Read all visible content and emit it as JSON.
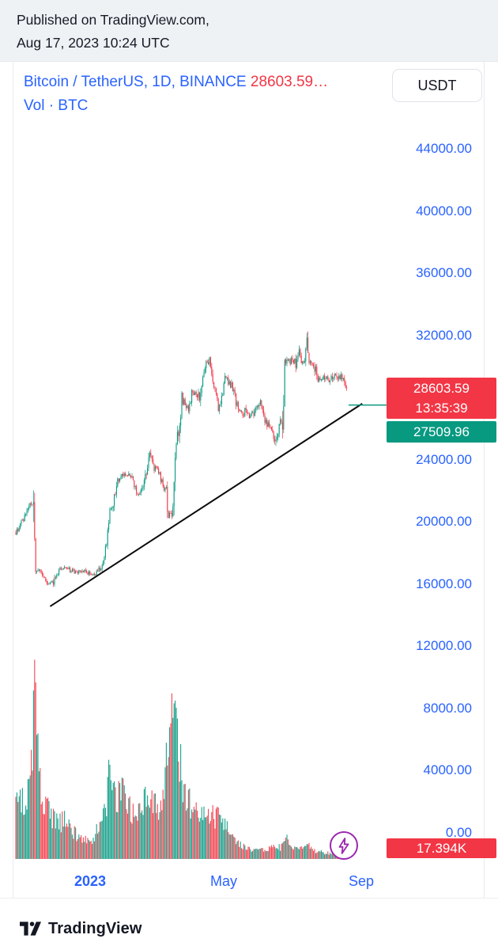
{
  "header": {
    "line1": "Published on TradingView.com,",
    "line2": "Aug 17, 2023 10:24 UTC"
  },
  "legend": {
    "symbol": "Bitcoin / TetherUS, 1D, BINANCE",
    "price_summary": "28603.59…",
    "volume_row": "Vol · BTC"
  },
  "toolbar": {
    "currency_button": "USDT"
  },
  "badges": {
    "last_price": "28603.59",
    "countdown": "13:35:39",
    "level_price": "27509.96",
    "volume": "17.394K"
  },
  "axis": {
    "time_labels": [
      {
        "text": "2023",
        "bold": true
      },
      {
        "text": "May",
        "bold": false
      },
      {
        "text": "Sep",
        "bold": false
      }
    ]
  },
  "footer": {
    "brand": "TradingView"
  },
  "colors": {
    "accent_blue": "#2962ff",
    "up": "#089981",
    "down": "#f23645",
    "line_black": "#0b0b0b",
    "marker_purple": "#9c27b0"
  },
  "chart_data": {
    "type": "candlestick",
    "title": "Bitcoin / TetherUS, 1D, BINANCE",
    "pair": "Bitcoin / TetherUS",
    "interval": "1D",
    "exchange": "BINANCE",
    "quote": "USDT",
    "volume_unit": "BTC",
    "last_price": 28603.59,
    "countdown": "13:35:39",
    "horizontal_level": 27509.96,
    "last_bar_volume_label": "17.394K",
    "price_axis_ticks": [
      44000,
      40000,
      36000,
      32000,
      24000,
      20000,
      16000,
      12000,
      8000,
      4000,
      0
    ],
    "time_axis_ticks": [
      "2023",
      "May",
      "Sep"
    ],
    "trendline": {
      "from_day": 31,
      "from_price": 14550,
      "to_day": 313,
      "to_price": 27600
    },
    "flash_marker_day": 296,
    "estimated_daily_series": {
      "note_visible_range": "daily bars, late Oct 2022 through Aug 17 2023",
      "days": 300,
      "seed": 9,
      "price_anchors": [
        [
          0,
          19300
        ],
        [
          8,
          20300
        ],
        [
          13,
          21200
        ],
        [
          16,
          20800
        ],
        [
          17,
          18200
        ],
        [
          18,
          16600
        ],
        [
          21,
          16900
        ],
        [
          25,
          16550
        ],
        [
          30,
          15900
        ],
        [
          34,
          16150
        ],
        [
          40,
          17100
        ],
        [
          48,
          16900
        ],
        [
          55,
          16700
        ],
        [
          62,
          16830
        ],
        [
          71,
          16540
        ],
        [
          78,
          17200
        ],
        [
          83,
          18900
        ],
        [
          85,
          20900
        ],
        [
          88,
          21100
        ],
        [
          92,
          22700
        ],
        [
          96,
          22900
        ],
        [
          100,
          23050
        ],
        [
          104,
          22900
        ],
        [
          110,
          21750
        ],
        [
          114,
          21900
        ],
        [
          118,
          23300
        ],
        [
          121,
          24700
        ],
        [
          125,
          23400
        ],
        [
          129,
          23300
        ],
        [
          133,
          22300
        ],
        [
          136,
          21900
        ],
        [
          138,
          20250
        ],
        [
          141,
          20600
        ],
        [
          143,
          22200
        ],
        [
          145,
          24800
        ],
        [
          148,
          26500
        ],
        [
          150,
          28000
        ],
        [
          153,
          27400
        ],
        [
          156,
          27300
        ],
        [
          160,
          28400
        ],
        [
          164,
          28200
        ],
        [
          167,
          27800
        ],
        [
          170,
          29600
        ],
        [
          173,
          30300
        ],
        [
          175,
          30400
        ],
        [
          177,
          29900
        ],
        [
          180,
          28250
        ],
        [
          183,
          27300
        ],
        [
          185,
          27800
        ],
        [
          188,
          28900
        ],
        [
          190,
          29350
        ],
        [
          193,
          28900
        ],
        [
          196,
          28800
        ],
        [
          199,
          27700
        ],
        [
          202,
          27000
        ],
        [
          205,
          26900
        ],
        [
          208,
          27200
        ],
        [
          211,
          26900
        ],
        [
          214,
          26800
        ],
        [
          217,
          27300
        ],
        [
          220,
          27750
        ],
        [
          223,
          27200
        ],
        [
          226,
          26400
        ],
        [
          229,
          26100
        ],
        [
          232,
          25800
        ],
        [
          235,
          25050
        ],
        [
          238,
          26300
        ],
        [
          241,
          26550
        ],
        [
          243,
          30100
        ],
        [
          245,
          30500
        ],
        [
          247,
          30300
        ],
        [
          250,
          30450
        ],
        [
          253,
          30300
        ],
        [
          255,
          31000
        ],
        [
          258,
          30300
        ],
        [
          260,
          30200
        ],
        [
          263,
          31400
        ],
        [
          265,
          30300
        ],
        [
          268,
          30000
        ],
        [
          270,
          29900
        ],
        [
          273,
          29200
        ],
        [
          276,
          29300
        ],
        [
          280,
          29250
        ],
        [
          284,
          29100
        ],
        [
          288,
          29450
        ],
        [
          292,
          29400
        ],
        [
          295,
          29250
        ],
        [
          297,
          29100
        ],
        [
          299,
          28603.59
        ]
      ],
      "volume_anchors": [
        [
          0,
          3200
        ],
        [
          10,
          3800
        ],
        [
          14,
          5200
        ],
        [
          17,
          11000
        ],
        [
          19,
          8500
        ],
        [
          22,
          5000
        ],
        [
          27,
          3200
        ],
        [
          32,
          2600
        ],
        [
          38,
          2200
        ],
        [
          45,
          2400
        ],
        [
          52,
          1700
        ],
        [
          58,
          1300
        ],
        [
          64,
          1100
        ],
        [
          71,
          1300
        ],
        [
          76,
          2200
        ],
        [
          82,
          3600
        ],
        [
          85,
          5300
        ],
        [
          90,
          3900
        ],
        [
          95,
          4100
        ],
        [
          100,
          3400
        ],
        [
          105,
          2800
        ],
        [
          110,
          3100
        ],
        [
          115,
          3300
        ],
        [
          119,
          4300
        ],
        [
          124,
          3600
        ],
        [
          129,
          3100
        ],
        [
          134,
          3600
        ],
        [
          137,
          6500
        ],
        [
          139,
          9800
        ],
        [
          141,
          9200
        ],
        [
          143,
          8200
        ],
        [
          146,
          7200
        ],
        [
          149,
          5600
        ],
        [
          153,
          4200
        ],
        [
          157,
          3500
        ],
        [
          161,
          3200
        ],
        [
          165,
          2900
        ],
        [
          169,
          3100
        ],
        [
          173,
          3300
        ],
        [
          177,
          2700
        ],
        [
          181,
          2600
        ],
        [
          185,
          2300
        ],
        [
          189,
          2100
        ],
        [
          193,
          1700
        ],
        [
          197,
          1200
        ],
        [
          201,
          900
        ],
        [
          206,
          750
        ],
        [
          211,
          650
        ],
        [
          216,
          550
        ],
        [
          221,
          520
        ],
        [
          226,
          600
        ],
        [
          231,
          700
        ],
        [
          235,
          850
        ],
        [
          239,
          700
        ],
        [
          243,
          1400
        ],
        [
          247,
          900
        ],
        [
          251,
          700
        ],
        [
          255,
          800
        ],
        [
          259,
          650
        ],
        [
          263,
          950
        ],
        [
          267,
          600
        ],
        [
          271,
          500
        ],
        [
          275,
          430
        ],
        [
          280,
          380
        ],
        [
          285,
          340
        ],
        [
          290,
          320
        ],
        [
          295,
          300
        ],
        [
          299,
          290
        ]
      ]
    }
  }
}
